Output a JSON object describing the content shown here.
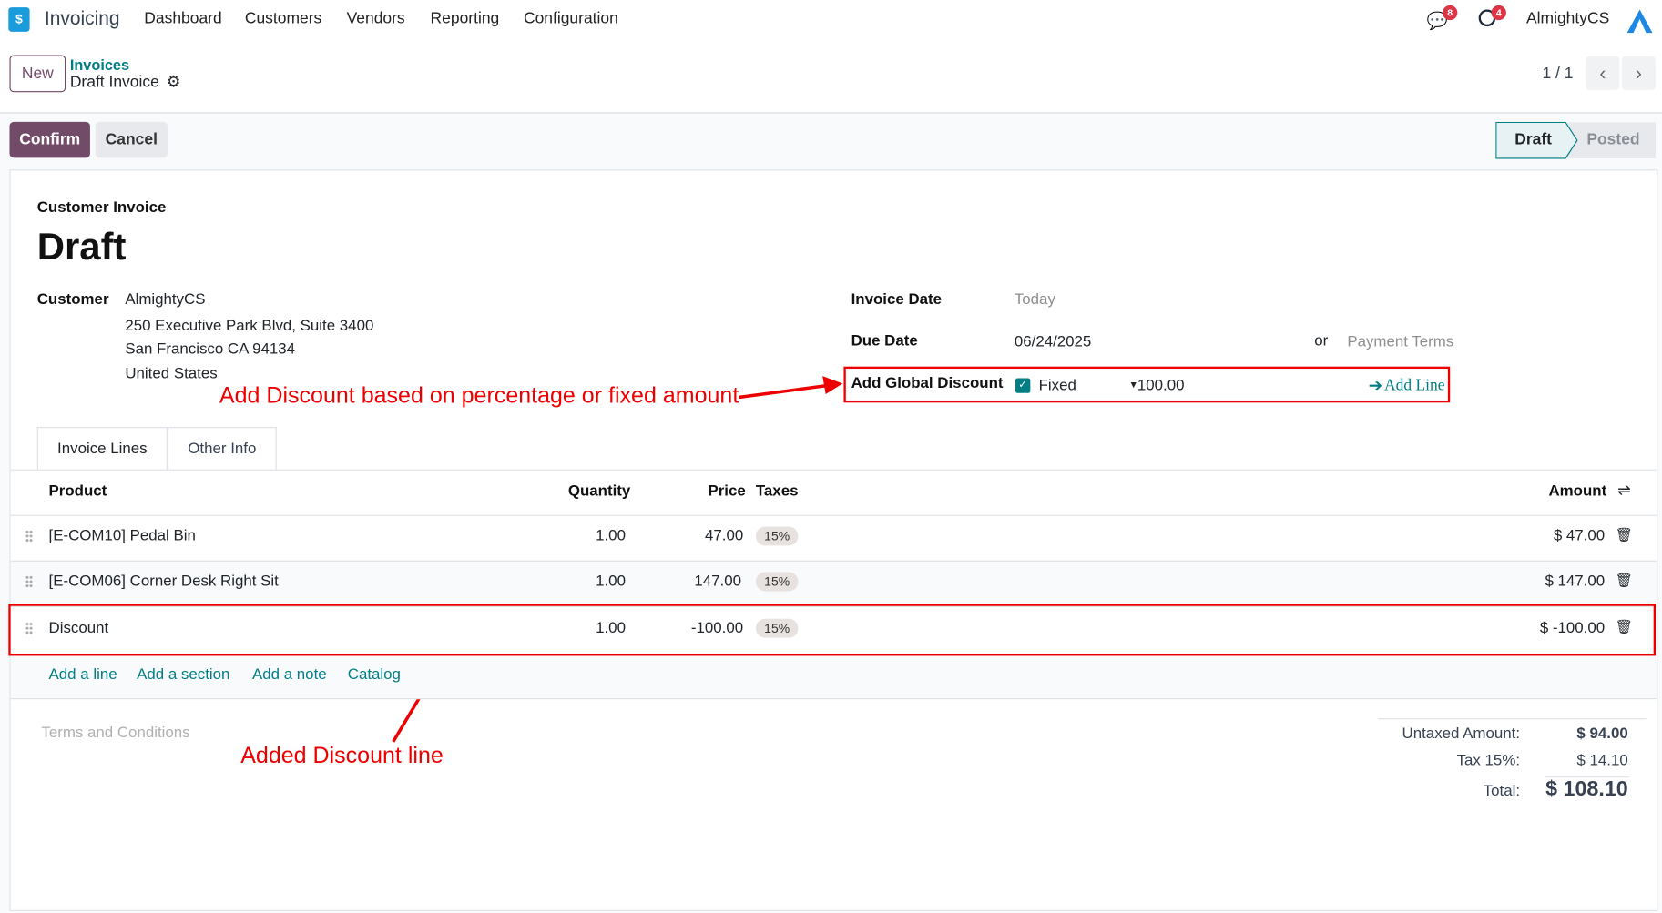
{
  "app": {
    "name": "Invoicing",
    "logo_icon": "invoicing-logo-icon"
  },
  "nav": {
    "items": [
      "Dashboard",
      "Customers",
      "Vendors",
      "Reporting",
      "Configuration"
    ]
  },
  "systray": {
    "messages_count": "8",
    "activities_count": "4",
    "user": "AlmightyCS"
  },
  "control_panel": {
    "new_label": "New",
    "breadcrumb_parent": "Invoices",
    "breadcrumb_current": "Draft Invoice",
    "pager": "1 / 1"
  },
  "actions": {
    "confirm": "Confirm",
    "cancel": "Cancel"
  },
  "statusbar": {
    "stages": [
      "Draft",
      "Posted"
    ],
    "active": "Draft"
  },
  "form": {
    "type": "Customer Invoice",
    "title": "Draft",
    "customer_label": "Customer",
    "customer": [
      "AlmightyCS",
      "250 Executive Park Blvd, Suite 3400",
      "San Francisco CA 94134",
      "United States"
    ],
    "invoice_date_label": "Invoice Date",
    "invoice_date_placeholder": "Today",
    "due_date_label": "Due Date",
    "due_date": "06/24/2025",
    "or": "or",
    "payment_terms_placeholder": "Payment Terms",
    "discount_label": "Add Global Discount",
    "discount_type": "Fixed",
    "discount_checked": true,
    "discount_value": "100.00",
    "add_line": "Add Line"
  },
  "annotations": {
    "discount": "Add Discount based on percentage or fixed amount",
    "line": "Added Discount line",
    "color": "#ff0000"
  },
  "tabs": [
    "Invoice Lines",
    "Other Info"
  ],
  "table": {
    "headers": {
      "product": "Product",
      "quantity": "Quantity",
      "price": "Price",
      "taxes": "Taxes",
      "amount": "Amount"
    },
    "rows": [
      {
        "product": "[E-COM10] Pedal Bin",
        "quantity": "1.00",
        "price": "47.00",
        "tax": "15%",
        "amount": "$ 47.00"
      },
      {
        "product": "[E-COM06] Corner Desk Right Sit",
        "quantity": "1.00",
        "price": "147.00",
        "tax": "15%",
        "amount": "$ 147.00"
      },
      {
        "product": "Discount",
        "quantity": "1.00",
        "price": "-100.00",
        "tax": "15%",
        "amount": "$ -100.00"
      }
    ],
    "add_links": [
      "Add a line",
      "Add a section",
      "Add a note",
      "Catalog"
    ]
  },
  "terms_placeholder": "Terms and Conditions",
  "totals": {
    "untaxed_label": "Untaxed Amount:",
    "untaxed": "$ 94.00",
    "tax_label": "Tax 15%:",
    "tax": "$ 14.10",
    "total_label": "Total:",
    "total": "$ 108.10"
  },
  "colors": {
    "primary": "#714b67",
    "teal": "#017e84",
    "badge": "#dc3545"
  }
}
